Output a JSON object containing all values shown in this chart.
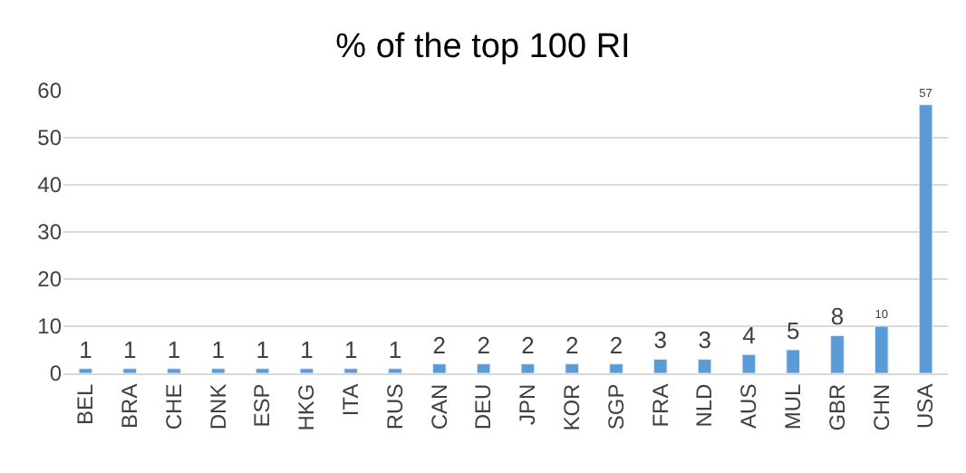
{
  "chart_data": {
    "type": "bar",
    "title": "% of the top 100 RI",
    "categories": [
      "BEL",
      "BRA",
      "CHE",
      "DNK",
      "ESP",
      "HKG",
      "ITA",
      "RUS",
      "CAN",
      "DEU",
      "JPN",
      "KOR",
      "SGP",
      "FRA",
      "NLD",
      "AUS",
      "MUL",
      "GBR",
      "CHN",
      "USA"
    ],
    "values": [
      1,
      1,
      1,
      1,
      1,
      1,
      1,
      1,
      2,
      2,
      2,
      2,
      2,
      3,
      3,
      4,
      5,
      8,
      10,
      57
    ],
    "color": "#5b9bd5",
    "ylim": [
      0,
      60
    ],
    "yticks": [
      0,
      10,
      20,
      30,
      40,
      50,
      60
    ],
    "grid": "y",
    "data_labels": true
  }
}
